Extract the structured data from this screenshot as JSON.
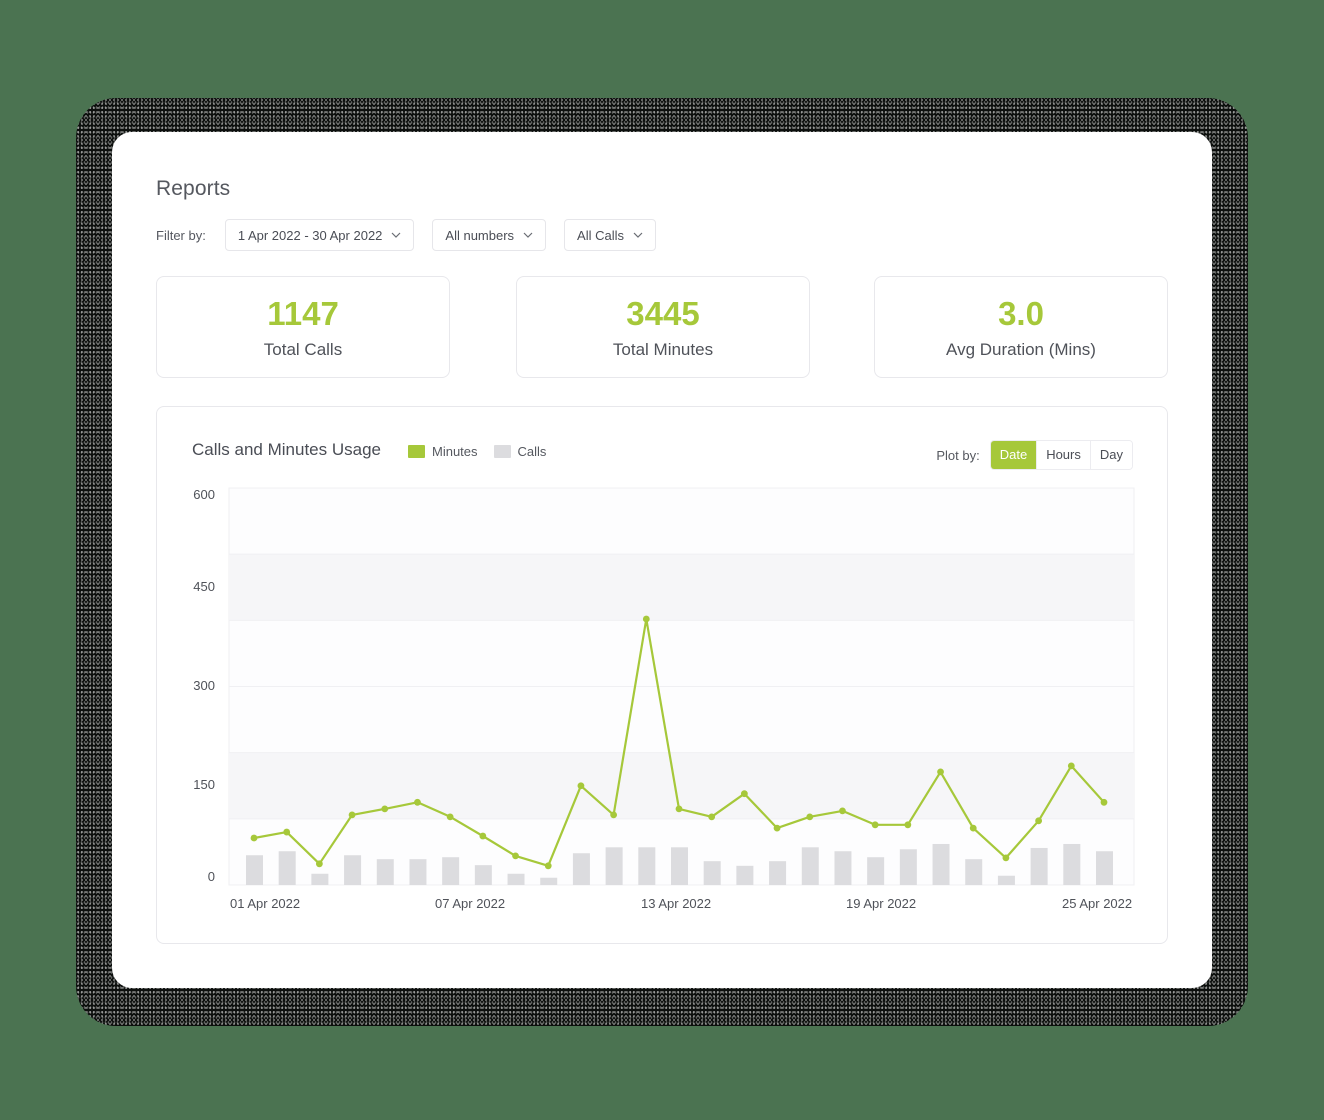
{
  "page": {
    "title": "Reports",
    "filter_label": "Filter by:",
    "filters": [
      {
        "value": "1 Apr 2022 - 30 Apr 2022"
      },
      {
        "value": "All numbers"
      },
      {
        "value": "All Calls"
      }
    ]
  },
  "stats": [
    {
      "value": "1147",
      "label": "Total Calls"
    },
    {
      "value": "3445",
      "label": "Total Minutes"
    },
    {
      "value": "3.0",
      "label": "Avg Duration (Mins)"
    }
  ],
  "chart_panel": {
    "title": "Calls and Minutes Usage",
    "legend": [
      {
        "label": "Minutes",
        "color": "#a6c83a"
      },
      {
        "label": "Calls",
        "color": "#dcdcdf"
      }
    ],
    "plot_by_label": "Plot by:",
    "plot_by_options": [
      {
        "label": "Date",
        "active": true
      },
      {
        "label": "Hours",
        "active": false
      },
      {
        "label": "Day",
        "active": false
      }
    ]
  },
  "colors": {
    "accent": "#a6c83a",
    "bar": "#dcdcdf",
    "band": "#f6f6f8"
  },
  "chart_data": {
    "type": "bar+line",
    "title": "Calls and Minutes Usage",
    "xlabel": "",
    "ylabel": "",
    "ylim": [
      0,
      600
    ],
    "y_tick_labels": [
      "600",
      "450",
      "300",
      "150",
      "0"
    ],
    "x_tick_labels": [
      "01 Apr 2022",
      "07 Apr 2022",
      "13 Apr 2022",
      "19 Apr 2022",
      "25 Apr 2022"
    ],
    "grid": true,
    "legend_position": "top",
    "categories": [
      "01 Apr",
      "02 Apr",
      "03 Apr",
      "04 Apr",
      "05 Apr",
      "06 Apr",
      "07 Apr",
      "08 Apr",
      "09 Apr",
      "10 Apr",
      "11 Apr",
      "12 Apr",
      "13 Apr",
      "14 Apr",
      "15 Apr",
      "16 Apr",
      "17 Apr",
      "18 Apr",
      "19 Apr",
      "20 Apr",
      "21 Apr",
      "22 Apr",
      "23 Apr",
      "24 Apr",
      "25 Apr",
      "26 Apr",
      "27 Apr"
    ],
    "series": [
      {
        "name": "Minutes",
        "type": "line",
        "color": "#a6c83a",
        "values": [
          71,
          80,
          32,
          106,
          115,
          125,
          103,
          74,
          44,
          29,
          150,
          106,
          402,
          115,
          103,
          138,
          86,
          103,
          112,
          91,
          91,
          171,
          86,
          41,
          97,
          180,
          125
        ]
      },
      {
        "name": "Calls",
        "type": "bar",
        "color": "#dcdcdf",
        "values": [
          45,
          51,
          17,
          45,
          39,
          39,
          42,
          30,
          17,
          11,
          48,
          57,
          57,
          57,
          36,
          29,
          36,
          57,
          51,
          42,
          54,
          62,
          39,
          14,
          56,
          62,
          51
        ]
      }
    ]
  }
}
